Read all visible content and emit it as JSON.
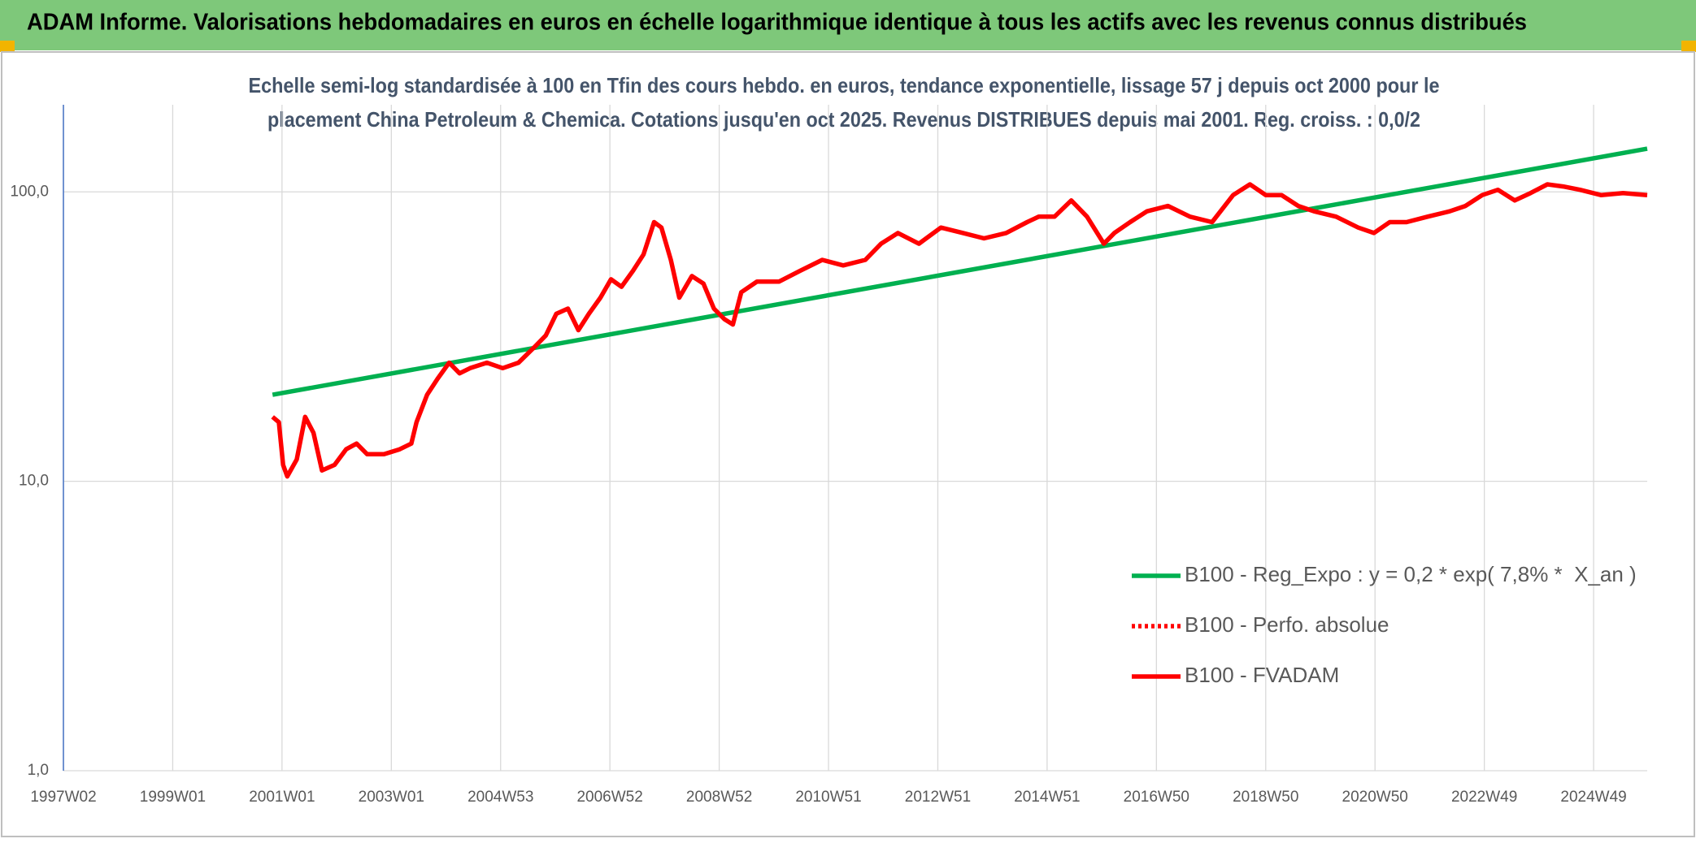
{
  "chart_data": {
    "type": "line",
    "title": "ADAM Informe. Valorisations hebdomadaires en euros en échelle logarithmique identique à tous les actifs avec les revenus connus distribués",
    "subtitle_lines": [
      "Echelle semi-log standardisée à 100 en Tfin des cours hebdo. en euros, tendance exponentielle, lissage 57 j depuis oct 2000 pour le",
      "placement China Petroleum & Chemica. Cotations jusqu'en oct 2025. Revenus DISTRIBUES depuis mai 2001. Reg. croiss. : 0,0/2"
    ],
    "xlim": [
      0,
      1507
    ],
    "xticks": [
      {
        "value": 0,
        "label": "1997W02"
      },
      {
        "value": 104,
        "label": "1999W01"
      },
      {
        "value": 208,
        "label": "2001W01"
      },
      {
        "value": 312,
        "label": "2003W01"
      },
      {
        "value": 416,
        "label": "2004W53"
      },
      {
        "value": 520,
        "label": "2006W52"
      },
      {
        "value": 624,
        "label": "2008W52"
      },
      {
        "value": 728,
        "label": "2010W51"
      },
      {
        "value": 832,
        "label": "2012W51"
      },
      {
        "value": 936,
        "label": "2014W51"
      },
      {
        "value": 1040,
        "label": "2016W50"
      },
      {
        "value": 1144,
        "label": "2018W50"
      },
      {
        "value": 1248,
        "label": "2020W50"
      },
      {
        "value": 1352,
        "label": "2022W49"
      },
      {
        "value": 1456,
        "label": "2024W49"
      }
    ],
    "ylim": [
      1,
      200
    ],
    "log_y": true,
    "yticks": [
      {
        "value": 1,
        "label": "1,0"
      },
      {
        "value": 10,
        "label": "10,0"
      },
      {
        "value": 100,
        "label": "100,0"
      }
    ],
    "grid": true,
    "series": [
      {
        "name": "B100 - Reg_Expo : y = 0,2 * exp( 7,8% *  X_an )",
        "color": "#00b050",
        "dash": "solid",
        "x": [
          199,
          1507
        ],
        "values": [
          19.9,
          141
        ]
      },
      {
        "name": "B100 - Perfo. absolue",
        "color": "#ff0000",
        "dash": "dotted"
      },
      {
        "name": "B100 - FVADAM",
        "color": "#ff0000",
        "dash": "solid",
        "x": [
          199,
          205,
          209,
          213,
          222,
          230,
          238,
          246,
          258,
          269,
          279,
          289,
          305,
          320,
          331,
          336,
          346,
          356,
          367,
          377,
          387,
          403,
          418,
          433,
          449,
          459,
          469,
          480,
          490,
          500,
          511,
          521,
          531,
          542,
          552,
          562,
          569,
          578,
          586,
          598,
          609,
          619,
          629,
          637,
          645,
          660,
          681,
          701,
          722,
          742,
          763,
          778,
          794,
          814,
          835,
          856,
          876,
          897,
          917,
          928,
          943,
          959,
          974,
          990,
          1000,
          1015,
          1031,
          1051,
          1072,
          1093,
          1113,
          1129,
          1144,
          1159,
          1175,
          1190,
          1211,
          1232,
          1247,
          1262,
          1278,
          1298,
          1319,
          1334,
          1350,
          1365,
          1381,
          1396,
          1412,
          1427,
          1443,
          1463,
          1484,
          1507
        ],
        "values": [
          16.7,
          16.0,
          11.4,
          10.4,
          11.9,
          16.7,
          14.7,
          10.9,
          11.4,
          12.9,
          13.5,
          12.4,
          12.4,
          12.9,
          13.5,
          16.0,
          19.9,
          22.6,
          25.7,
          23.6,
          24.6,
          25.7,
          24.6,
          25.7,
          29.3,
          31.9,
          37.9,
          39.5,
          33.3,
          37.9,
          43.1,
          49.9,
          47.0,
          53.4,
          60.8,
          78.6,
          75.3,
          58.2,
          43.1,
          51.2,
          48.2,
          39.5,
          36.3,
          34.8,
          45.0,
          49.0,
          49.0,
          53.4,
          58.2,
          55.7,
          58.2,
          66.2,
          72.1,
          66.2,
          75.3,
          72.1,
          69.1,
          72.1,
          78.6,
          82.1,
          82.1,
          93.4,
          82.1,
          66.2,
          72.1,
          78.6,
          85.7,
          89.4,
          82.1,
          78.6,
          97.5,
          106.2,
          97.5,
          97.5,
          89.4,
          85.7,
          82.1,
          75.3,
          72.1,
          78.6,
          78.6,
          82.1,
          85.7,
          89.4,
          97.5,
          101.7,
          93.4,
          99.1,
          106.2,
          104.4,
          101.7,
          97.5,
          99.1,
          97.5
        ]
      }
    ]
  }
}
